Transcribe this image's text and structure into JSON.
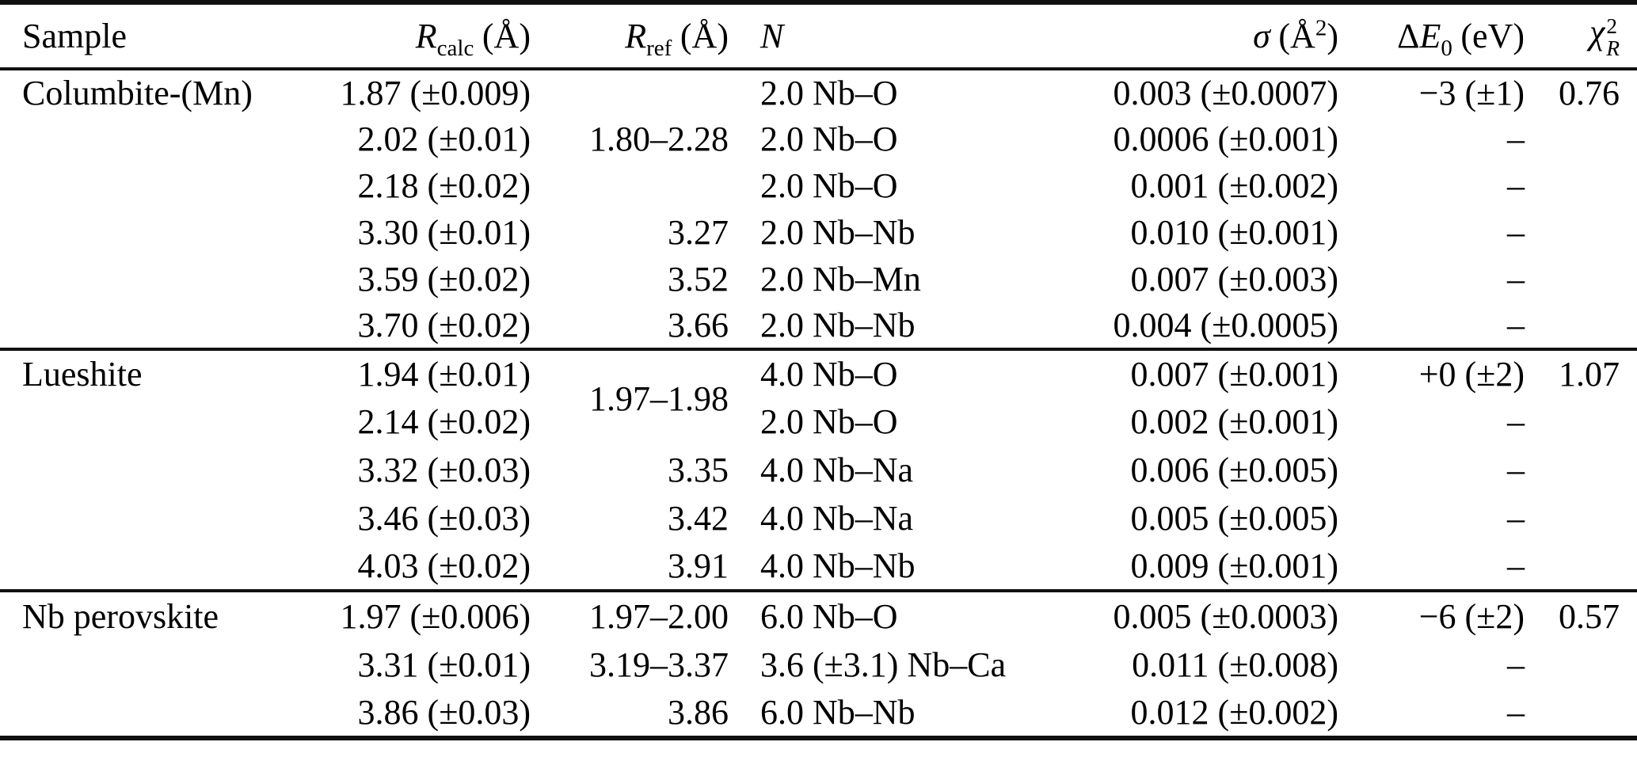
{
  "table": {
    "header": {
      "sample": "Sample",
      "r_calc": {
        "symbol": "R",
        "subscript": "calc",
        "unit": "(Å)"
      },
      "r_ref": {
        "symbol": "R",
        "subscript": "ref",
        "unit": "(Å)"
      },
      "n": {
        "symbol": "N"
      },
      "sigma": {
        "symbol": "σ",
        "unit_open": "(Å",
        "unit_sup": "2",
        "unit_close": ")"
      },
      "delta_e0": {
        "prefix": "Δ",
        "symbol": "E",
        "subscript": "0",
        "unit": "(eV)"
      },
      "chi2": {
        "symbol": "χ",
        "sup": "2",
        "sub": "R"
      }
    },
    "groups": [
      {
        "sample": "Columbite-(Mn)",
        "rows": [
          [
            "Columbite-(Mn)",
            "1.87 (±0.009)",
            "",
            "2.0 Nb–O",
            "0.003 (±0.0007)",
            "−3 (±1)",
            "0.76"
          ],
          [
            "",
            "2.02 (±0.01)",
            "1.80–2.28",
            "2.0 Nb–O",
            "0.0006 (±0.001)",
            "–",
            ""
          ],
          [
            "",
            "2.18 (±0.02)",
            "",
            "2.0 Nb–O",
            "0.001 (±0.002)",
            "–",
            ""
          ],
          [
            "",
            "3.30 (±0.01)",
            "3.27",
            "2.0 Nb–Nb",
            "0.010 (±0.001)",
            "–",
            ""
          ],
          [
            "",
            "3.59 (±0.02)",
            "3.52",
            "2.0 Nb–Mn",
            "0.007 (±0.003)",
            "–",
            ""
          ],
          [
            "",
            "3.70 (±0.02)",
            "3.66",
            "2.0 Nb–Nb",
            "0.004 (±0.0005)",
            "–",
            ""
          ]
        ]
      },
      {
        "sample": "Lueshite",
        "rows": [
          [
            "Lueshite",
            "1.94 (±0.01)",
            {
              "text": "1.97–1.98",
              "rowspan": 2
            },
            "4.0 Nb–O",
            "0.007 (±0.001)",
            "+0 (±2)",
            "1.07"
          ],
          [
            "",
            "2.14 (±0.02)",
            null,
            "2.0 Nb–O",
            "0.002 (±0.001)",
            "–",
            ""
          ],
          [
            "",
            "3.32 (±0.03)",
            "3.35",
            "4.0 Nb–Na",
            "0.006 (±0.005)",
            "–",
            ""
          ],
          [
            "",
            "3.46 (±0.03)",
            "3.42",
            "4.0 Nb–Na",
            "0.005 (±0.005)",
            "–",
            ""
          ],
          [
            "",
            "4.03 (±0.02)",
            "3.91",
            "4.0 Nb–Nb",
            "0.009 (±0.001)",
            "–",
            ""
          ]
        ]
      },
      {
        "sample": "Nb perovskite",
        "rows": [
          [
            "Nb perovskite",
            "1.97 (±0.006)",
            "1.97–2.00",
            "6.0 Nb–O",
            "0.005 (±0.0003)",
            "−6 (±2)",
            "0.57"
          ],
          [
            "",
            "3.31 (±0.01)",
            "3.19–3.37",
            "3.6 (±3.1) Nb–Ca",
            "0.011 (±0.008)",
            "–",
            ""
          ],
          [
            "",
            "3.86 (±0.03)",
            "3.86",
            "6.0 Nb–Nb",
            "0.012 (±0.002)",
            "–",
            ""
          ]
        ]
      }
    ]
  }
}
